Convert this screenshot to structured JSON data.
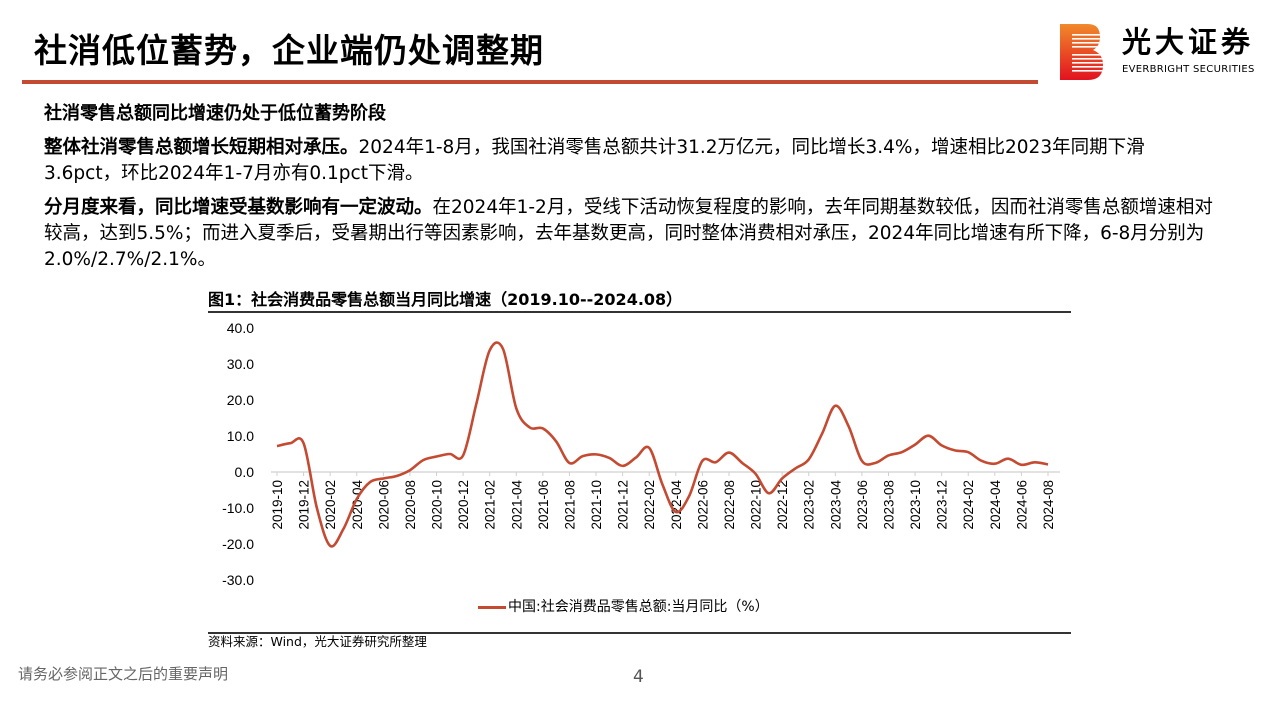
{
  "page": {
    "title": "社消低位蓄势，企业端仍处调整期",
    "logo": {
      "cn": "光大证券",
      "en": "EVERBRIGHT SECURITIES"
    },
    "heading": "社消零售总额同比增速仍处于低位蓄势阶段",
    "para1": {
      "bold": "整体社消零售总额增长短期相对承压。",
      "text": "2024年1-8月，我国社消零售总额共计31.2万亿元，同比增长3.4%，增速相比2023年同期下滑3.6pct，环比2024年1-7月亦有0.1pct下滑。"
    },
    "para2": {
      "bold": "分月度来看，同比增速受基数影响有一定波动。",
      "text": "在2024年1-2月，受线下活动恢复程度的影响，去年同期基数较低，因而社消零售总额增速相对较高，达到5.5%；而进入夏季后，受暑期出行等因素影响，去年基数更高，同时整体消费相对承压，2024年同比增速有所下降，6-8月分别为2.0%/2.7%/2.1%。"
    },
    "chart_title": "图1：社会消费品零售总额当月同比增速（2019.10--2024.08）",
    "source": "资料来源：Wind，光大证券研究所整理",
    "footer_note": "请务必参阅正文之后的重要声明",
    "page_number": "4",
    "colors": {
      "accent": "#c44a31",
      "text": "#000000",
      "footer": "#666666"
    }
  },
  "chart_data": {
    "type": "line",
    "title": "图1：社会消费品零售总额当月同比增速（2019.10--2024.08）",
    "xlabel": "",
    "ylabel": "",
    "ylim": [
      -30,
      40
    ],
    "yticks": [
      "40.0",
      "30.0",
      "20.0",
      "10.0",
      "0.0",
      "-10.0",
      "-20.0",
      "-30.0"
    ],
    "grid": false,
    "legend_position": "bottom",
    "x_tick_labels": [
      "2019-10",
      "2019-12",
      "2020-02",
      "2020-04",
      "2020-06",
      "2020-08",
      "2020-10",
      "2020-12",
      "2021-02",
      "2021-04",
      "2021-06",
      "2021-08",
      "2021-10",
      "2021-12",
      "2022-02",
      "2022-04",
      "2022-06",
      "2022-08",
      "2022-10",
      "2022-12",
      "2023-02",
      "2023-04",
      "2023-06",
      "2023-08",
      "2023-10",
      "2023-12",
      "2024-02",
      "2024-04",
      "2024-06",
      "2024-08"
    ],
    "x": [
      "2019-10",
      "2019-11",
      "2019-12",
      "2020-01",
      "2020-02",
      "2020-03",
      "2020-04",
      "2020-05",
      "2020-06",
      "2020-07",
      "2020-08",
      "2020-09",
      "2020-10",
      "2020-11",
      "2020-12",
      "2021-01",
      "2021-02",
      "2021-03",
      "2021-04",
      "2021-05",
      "2021-06",
      "2021-07",
      "2021-08",
      "2021-09",
      "2021-10",
      "2021-11",
      "2021-12",
      "2022-01",
      "2022-02",
      "2022-03",
      "2022-04",
      "2022-05",
      "2022-06",
      "2022-07",
      "2022-08",
      "2022-09",
      "2022-10",
      "2022-11",
      "2022-12",
      "2023-01",
      "2023-02",
      "2023-03",
      "2023-04",
      "2023-05",
      "2023-06",
      "2023-07",
      "2023-08",
      "2023-09",
      "2023-10",
      "2023-11",
      "2023-12",
      "2024-01",
      "2024-02",
      "2024-03",
      "2024-04",
      "2024-05",
      "2024-06",
      "2024-07",
      "2024-08"
    ],
    "series": [
      {
        "name": "中国:社会消费品零售总额:当月同比（%）",
        "color": "#c44a31",
        "values": [
          7.2,
          8.0,
          8.0,
          -10.0,
          -20.5,
          -15.8,
          -7.5,
          -2.8,
          -1.8,
          -1.1,
          0.5,
          3.3,
          4.3,
          5.0,
          4.6,
          19.0,
          33.8,
          34.2,
          17.7,
          12.4,
          12.1,
          8.5,
          2.5,
          4.4,
          4.9,
          3.9,
          1.7,
          4.0,
          6.7,
          -3.5,
          -11.1,
          -6.7,
          3.1,
          2.7,
          5.4,
          2.5,
          -0.5,
          -5.9,
          -1.8,
          1.0,
          3.5,
          10.6,
          18.4,
          12.7,
          3.1,
          2.5,
          4.6,
          5.5,
          7.6,
          10.1,
          7.4,
          6.0,
          5.5,
          3.1,
          2.3,
          3.7,
          2.0,
          2.7,
          2.1
        ]
      }
    ]
  }
}
